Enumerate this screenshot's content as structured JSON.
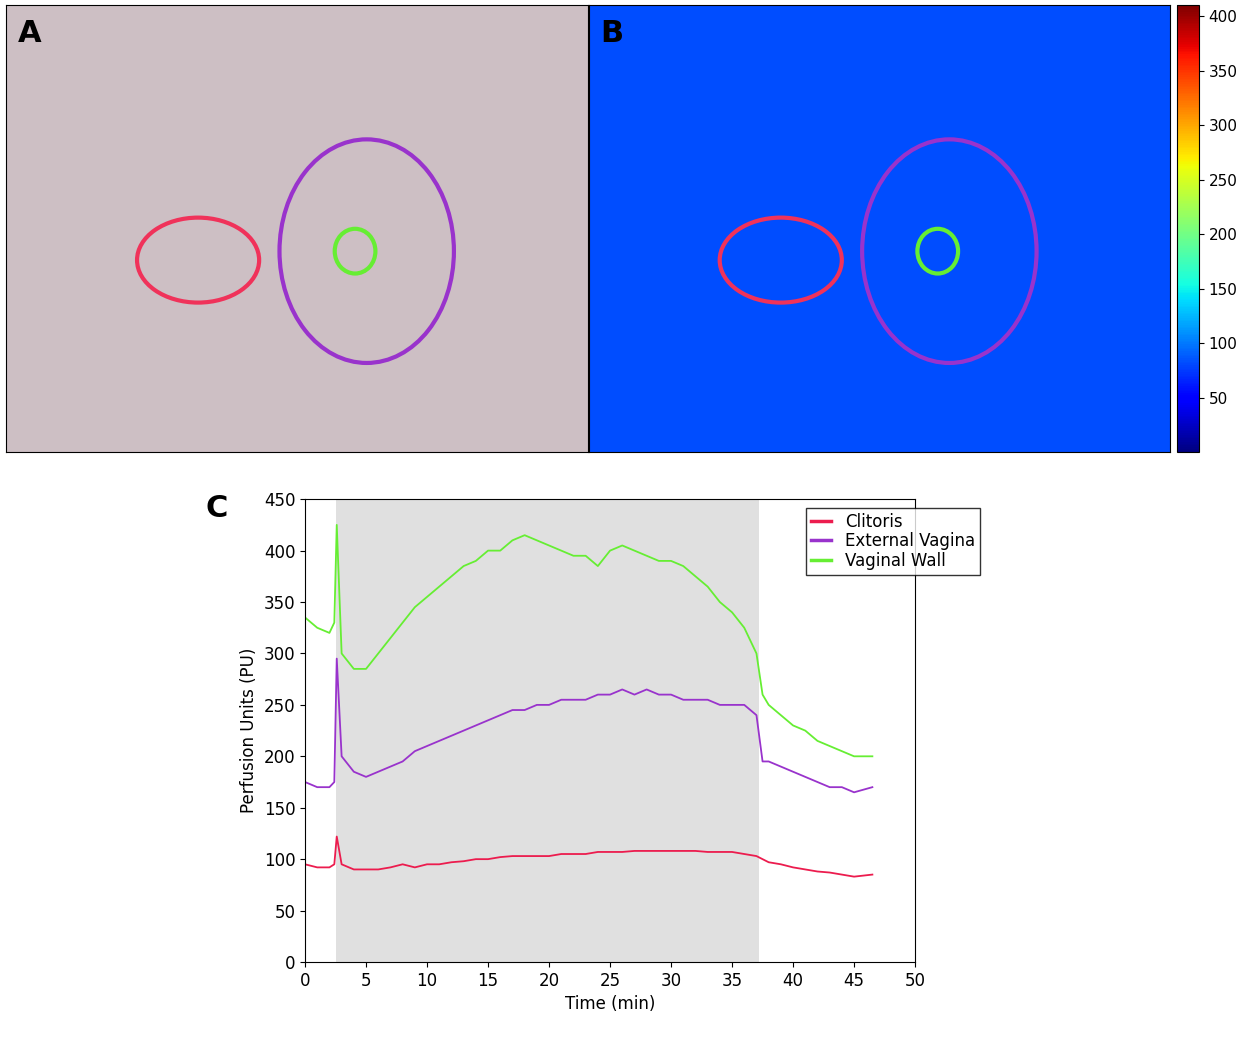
{
  "panels": [
    {
      "label": "A"
    },
    {
      "label": "B",
      "colorbar": {
        "range": [
          0,
          410
        ],
        "ticks": [
          50,
          100,
          150,
          200,
          250,
          300,
          350,
          400
        ]
      }
    }
  ],
  "chart_data": {
    "type": "line",
    "label": "C",
    "x_label": "Time (min)",
    "y_label": "Perfusion Units (PU)",
    "xlim": [
      0,
      50
    ],
    "xticks": [
      0,
      5,
      10,
      15,
      20,
      25,
      30,
      35,
      40,
      45,
      50
    ],
    "ylim": [
      0,
      450
    ],
    "yticks": [
      0,
      50,
      100,
      150,
      200,
      250,
      300,
      350,
      400,
      450
    ],
    "legend": "upper right",
    "shaded_region": [
      2.5,
      37.2
    ],
    "x": [
      0,
      1,
      2,
      2.4,
      2.6,
      3,
      4,
      5,
      6,
      7,
      8,
      9,
      10,
      11,
      12,
      13,
      14,
      15,
      16,
      17,
      18,
      19,
      20,
      21,
      22,
      23,
      24,
      25,
      26,
      27,
      28,
      29,
      30,
      31,
      32,
      33,
      34,
      35,
      36,
      37,
      37.5,
      38,
      39,
      40,
      41,
      42,
      43,
      44,
      45,
      46.5
    ],
    "series": [
      {
        "name": "Clitoris",
        "color": "#ec1c4e",
        "values": [
          95,
          92,
          92,
          95,
          122,
          95,
          90,
          90,
          90,
          92,
          95,
          92,
          95,
          95,
          97,
          98,
          100,
          100,
          102,
          103,
          103,
          103,
          103,
          105,
          105,
          105,
          107,
          107,
          107,
          108,
          108,
          108,
          108,
          108,
          108,
          107,
          107,
          107,
          105,
          103,
          100,
          97,
          95,
          92,
          90,
          88,
          87,
          85,
          83,
          85
        ]
      },
      {
        "name": "External Vagina",
        "color": "#9933cc",
        "values": [
          175,
          170,
          170,
          175,
          295,
          200,
          185,
          180,
          185,
          190,
          195,
          205,
          210,
          215,
          220,
          225,
          230,
          235,
          240,
          245,
          245,
          250,
          250,
          255,
          255,
          255,
          260,
          260,
          265,
          260,
          265,
          260,
          260,
          255,
          255,
          255,
          250,
          250,
          250,
          240,
          195,
          195,
          190,
          185,
          180,
          175,
          170,
          170,
          165,
          170
        ]
      },
      {
        "name": "Vaginal Wall",
        "color": "#66ee33",
        "values": [
          335,
          325,
          320,
          330,
          425,
          300,
          285,
          285,
          300,
          315,
          330,
          345,
          355,
          365,
          375,
          385,
          390,
          400,
          400,
          410,
          415,
          410,
          405,
          400,
          395,
          395,
          385,
          400,
          405,
          400,
          395,
          390,
          390,
          385,
          375,
          365,
          350,
          340,
          325,
          300,
          260,
          250,
          240,
          230,
          225,
          215,
          210,
          205,
          200,
          200
        ]
      }
    ]
  }
}
